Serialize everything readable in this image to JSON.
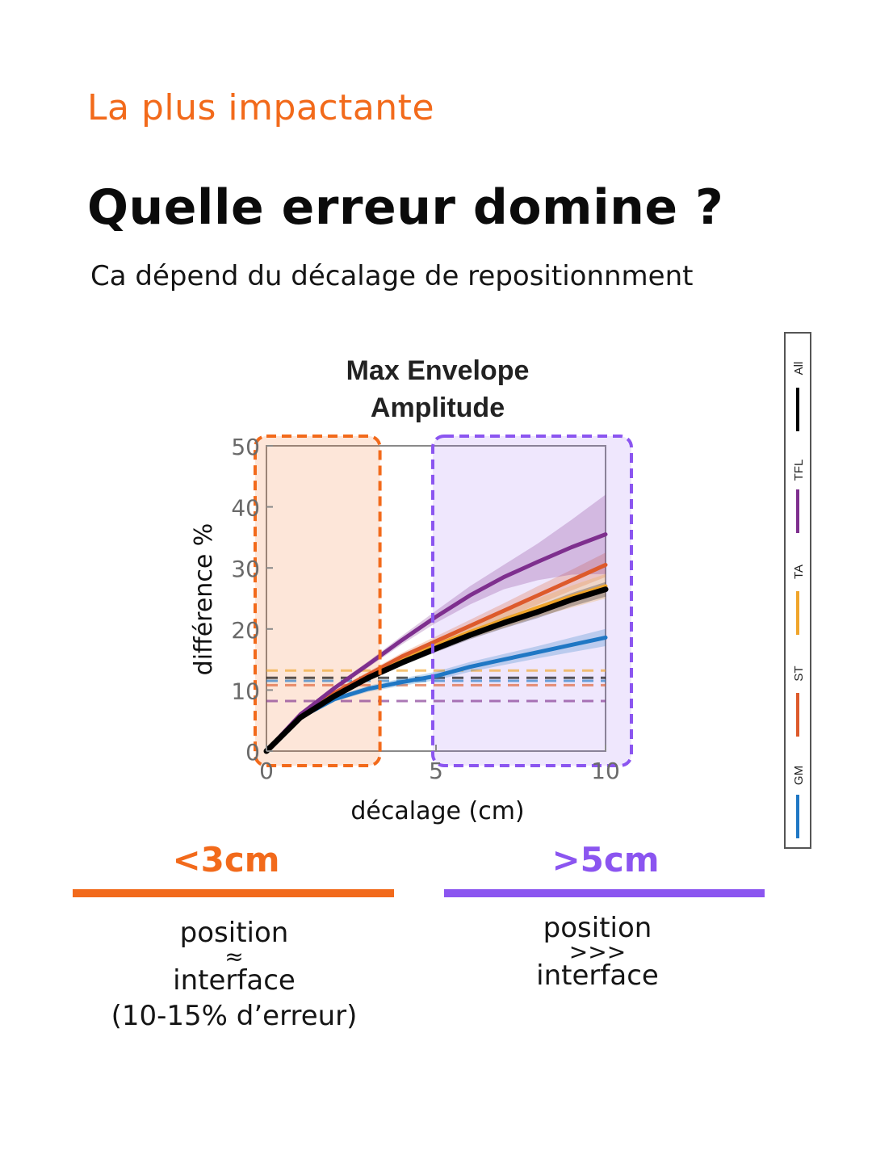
{
  "header": {
    "kicker": "La plus impactante",
    "title": "Quelle erreur domine ?",
    "subtitle": "Ca dépend du décalage de repositionnment"
  },
  "colors": {
    "accent_orange": "#f26a1b",
    "accent_purple": "#8b55f0",
    "GM": "#1f77c4",
    "ST": "#dd5a2b",
    "TA": "#f0a52a",
    "TFL": "#7e2f8e",
    "All": "#000000"
  },
  "chart_data": {
    "type": "line",
    "title": "Max Envelope Amplitude",
    "title_lines": [
      "Max Envelope",
      "Amplitude"
    ],
    "xlabel": "décalage (cm)",
    "ylabel": "différence %",
    "xlim": [
      0,
      10
    ],
    "ylim": [
      0,
      50
    ],
    "xticks": [
      0,
      5,
      10
    ],
    "yticks": [
      0,
      10,
      20,
      30,
      40,
      50
    ],
    "grid": false,
    "legend_position": "right, vertical",
    "x": [
      0,
      1,
      2,
      3,
      4,
      5,
      6,
      7,
      8,
      9,
      10
    ],
    "series": [
      {
        "name": "GM",
        "values": [
          0,
          5.5,
          8.5,
          10.2,
          11.3,
          12.3,
          13.8,
          15.0,
          16.2,
          17.4,
          18.6
        ],
        "baseline": 11.5,
        "band": [
          0,
          0.3,
          0.4,
          0.5,
          0.6,
          0.7,
          0.8,
          0.9,
          1.0,
          1.2,
          1.4
        ]
      },
      {
        "name": "ST",
        "values": [
          0,
          5.8,
          9.5,
          12.5,
          15.5,
          18.0,
          20.5,
          23.0,
          25.5,
          28.0,
          30.5
        ],
        "baseline": 10.8,
        "band": [
          0,
          0.3,
          0.4,
          0.5,
          0.6,
          0.8,
          1.0,
          1.2,
          1.5,
          1.7,
          2.0
        ]
      },
      {
        "name": "TA",
        "values": [
          0,
          5.7,
          9.2,
          12.0,
          14.8,
          17.3,
          19.5,
          21.5,
          23.5,
          25.3,
          27.0
        ],
        "baseline": 13.2,
        "band": [
          0,
          0.3,
          0.4,
          0.5,
          0.6,
          0.8,
          1.0,
          1.3,
          1.5,
          1.8,
          2.0
        ]
      },
      {
        "name": "TFL",
        "values": [
          0,
          6.0,
          10.3,
          14.2,
          18.2,
          22.0,
          25.5,
          28.5,
          31.0,
          33.4,
          35.5
        ],
        "baseline": 8.2,
        "band": [
          0,
          0.3,
          0.4,
          0.5,
          0.7,
          1.0,
          1.5,
          2.0,
          3.0,
          4.5,
          6.5
        ]
      },
      {
        "name": "All",
        "values": [
          0,
          5.5,
          9.0,
          12.0,
          14.5,
          16.8,
          19.0,
          21.0,
          22.8,
          24.8,
          26.5
        ],
        "baseline": 12.0,
        "band": [
          0,
          0.2,
          0.3,
          0.4,
          0.5,
          0.6,
          0.7,
          0.9,
          1.0,
          1.1,
          1.2
        ]
      }
    ],
    "highlight_regions": [
      {
        "x": [
          0,
          3.3
        ],
        "color": "#f26a1b"
      },
      {
        "x": [
          5,
          10
        ],
        "color": "#8b55f0"
      }
    ]
  },
  "regions": {
    "left": {
      "label": "<3cm",
      "line1": "position",
      "line2": "≈",
      "line3": "interface",
      "line4": "(10-15% d’erreur)"
    },
    "right": {
      "label": ">5cm",
      "line1": "position",
      "line2": ">>>",
      "line3": "interface"
    }
  }
}
